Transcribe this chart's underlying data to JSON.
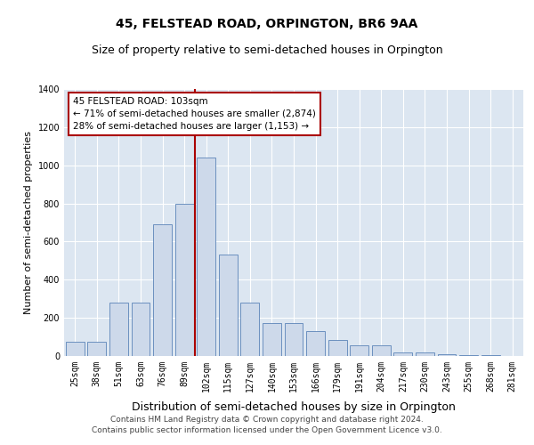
{
  "title": "45, FELSTEAD ROAD, ORPINGTON, BR6 9AA",
  "subtitle": "Size of property relative to semi-detached houses in Orpington",
  "xlabel": "Distribution of semi-detached houses by size in Orpington",
  "ylabel": "Number of semi-detached properties",
  "footer_line1": "Contains HM Land Registry data © Crown copyright and database right 2024.",
  "footer_line2": "Contains public sector information licensed under the Open Government Licence v3.0.",
  "categories": [
    "25sqm",
    "38sqm",
    "51sqm",
    "63sqm",
    "76sqm",
    "89sqm",
    "102sqm",
    "115sqm",
    "127sqm",
    "140sqm",
    "153sqm",
    "166sqm",
    "179sqm",
    "191sqm",
    "204sqm",
    "217sqm",
    "230sqm",
    "243sqm",
    "255sqm",
    "268sqm",
    "281sqm"
  ],
  "values": [
    75,
    75,
    280,
    280,
    690,
    800,
    1040,
    530,
    280,
    175,
    175,
    130,
    85,
    55,
    55,
    20,
    20,
    10,
    5,
    5,
    2
  ],
  "bar_color": "#cdd9ea",
  "bar_edge_color": "#5b84b8",
  "subject_line_color": "#aa0000",
  "annotation_text": "45 FELSTEAD ROAD: 103sqm\n← 71% of semi-detached houses are smaller (2,874)\n28% of semi-detached houses are larger (1,153) →",
  "annotation_box_color": "#ffffff",
  "annotation_box_edge": "#aa0000",
  "ylim": [
    0,
    1400
  ],
  "plot_background": "#dce6f1",
  "title_fontsize": 10,
  "subtitle_fontsize": 9,
  "ylabel_fontsize": 8,
  "xlabel_fontsize": 9,
  "tick_fontsize": 7,
  "annotation_fontsize": 7.5,
  "footer_fontsize": 6.5
}
